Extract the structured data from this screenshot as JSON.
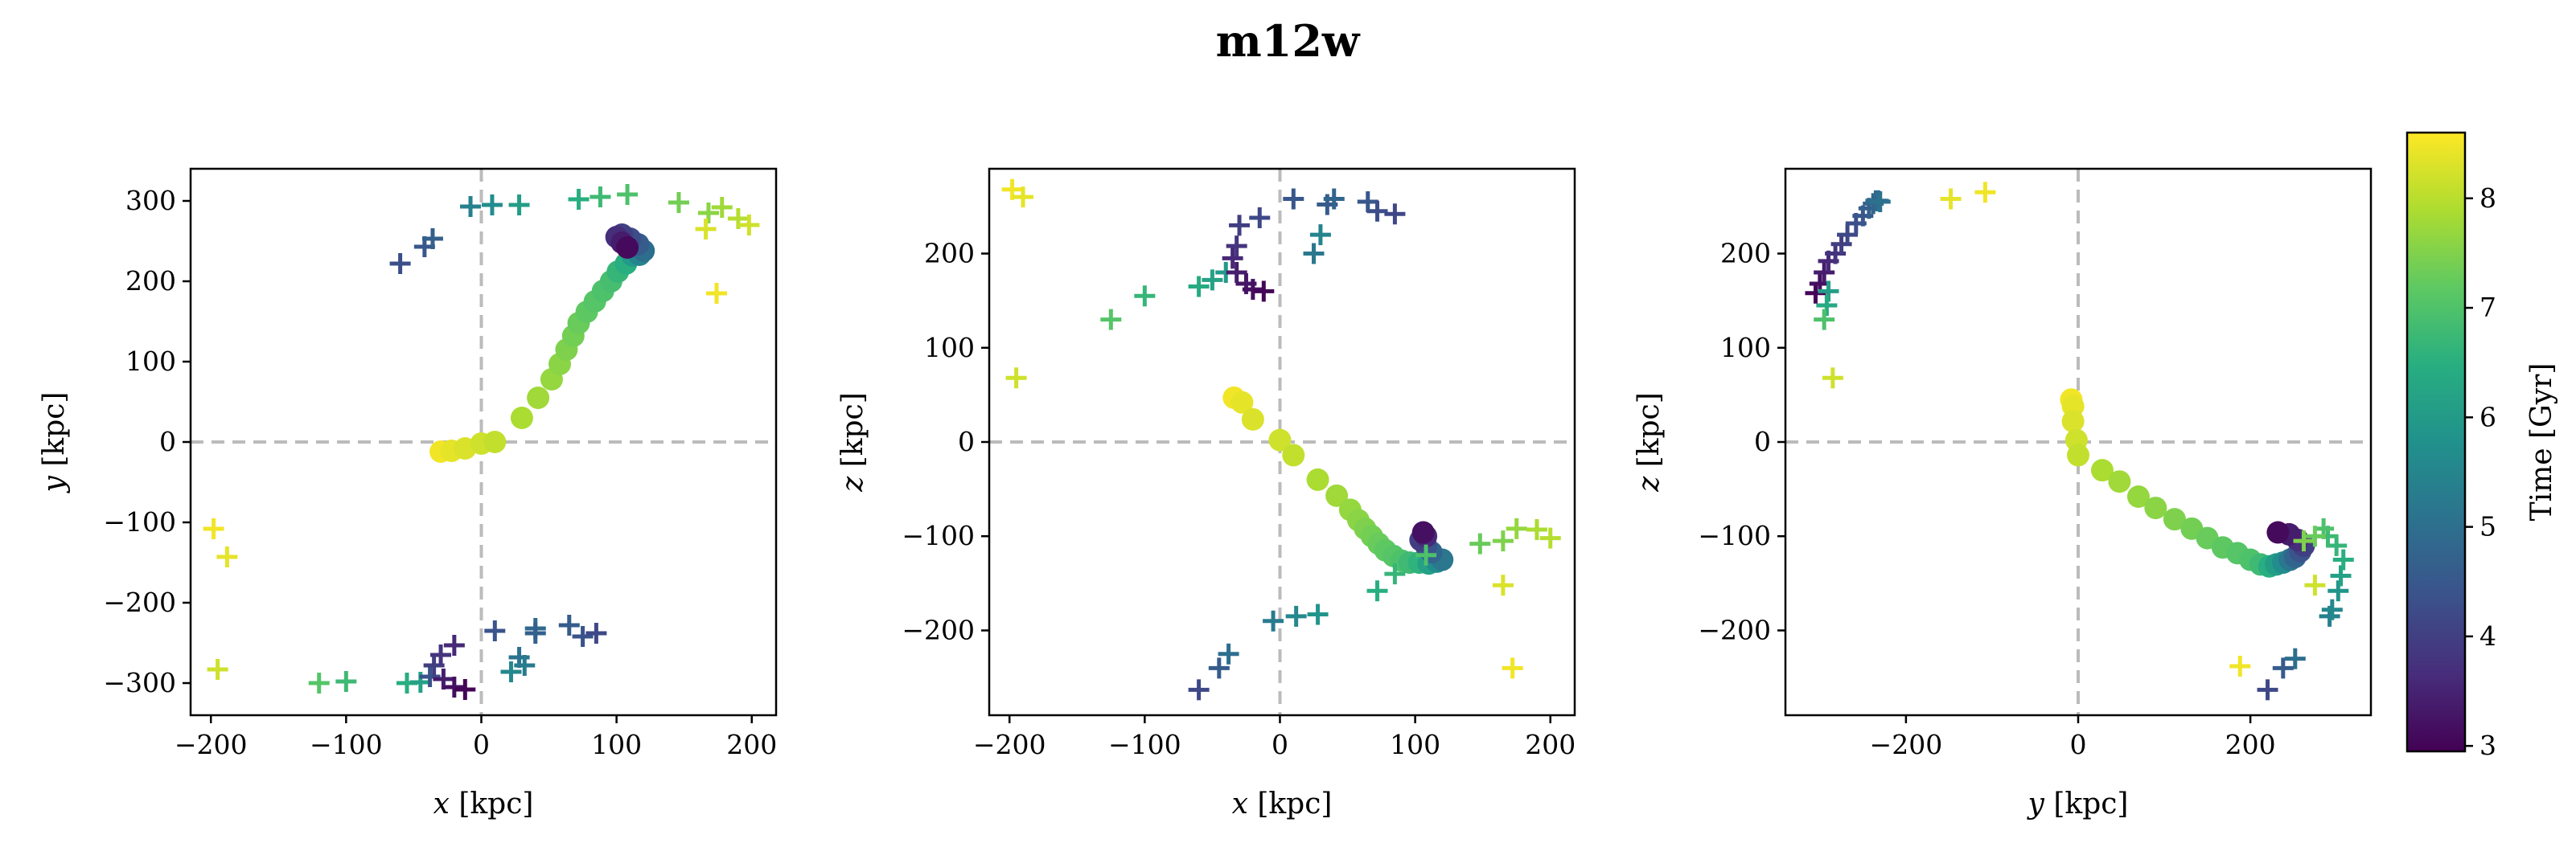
{
  "figure": {
    "title": "m12w",
    "colorbar": {
      "label": "Time [Gyr]",
      "range": [
        2.95,
        8.6
      ],
      "ticks": [
        3,
        4,
        5,
        6,
        7,
        8
      ]
    }
  },
  "chart_data": [
    {
      "type": "scatter",
      "xlabel_var": "x",
      "xlabel_unit": " [kpc]",
      "ylabel_var": "y",
      "ylabel_unit": " [kpc]",
      "xlim": [
        -215,
        218
      ],
      "ylim": [
        -340,
        340
      ],
      "xticks": [
        -200,
        -100,
        0,
        100,
        200
      ],
      "yticks": [
        -300,
        -200,
        -100,
        0,
        100,
        200,
        300
      ],
      "grid": false,
      "zero_lines": true,
      "series": [
        {
          "marker": "circle",
          "points": [
            [
              -30,
              -12,
              8.5
            ],
            [
              -22,
              -11,
              8.4
            ],
            [
              -12,
              -8,
              8.3
            ],
            [
              0,
              -2,
              8.2
            ],
            [
              10,
              0,
              8.1
            ],
            [
              30,
              30,
              7.9
            ],
            [
              42,
              55,
              7.8
            ],
            [
              52,
              78,
              7.7
            ],
            [
              58,
              97,
              7.6
            ],
            [
              63,
              115,
              7.5
            ],
            [
              68,
              132,
              7.4
            ],
            [
              72,
              148,
              7.3
            ],
            [
              78,
              162,
              7.2
            ],
            [
              84,
              175,
              7.1
            ],
            [
              90,
              188,
              7.0
            ],
            [
              96,
              200,
              6.9
            ],
            [
              101,
              212,
              6.7
            ],
            [
              107,
              222,
              6.5
            ],
            [
              112,
              232,
              6.0
            ],
            [
              117,
              233,
              5.5
            ],
            [
              120,
              238,
              5.0
            ],
            [
              116,
              246,
              4.6
            ],
            [
              110,
              253,
              4.3
            ],
            [
              104,
              258,
              4.0
            ],
            [
              100,
              255,
              3.7
            ],
            [
              104,
              248,
              3.4
            ],
            [
              108,
              242,
              3.1
            ]
          ]
        },
        {
          "marker": "plus",
          "points": [
            [
              -60,
              222,
              4.3
            ],
            [
              -42,
              243,
              4.5
            ],
            [
              -36,
              253,
              4.7
            ],
            [
              -8,
              293,
              5.4
            ],
            [
              8,
              295,
              5.7
            ],
            [
              28,
              295,
              6.1
            ],
            [
              72,
              302,
              6.5
            ],
            [
              88,
              305,
              6.8
            ],
            [
              108,
              308,
              7.0
            ],
            [
              146,
              298,
              7.4
            ],
            [
              168,
              285,
              7.6
            ],
            [
              178,
              292,
              7.8
            ],
            [
              190,
              278,
              8.0
            ],
            [
              198,
              270,
              8.2
            ],
            [
              166,
              265,
              8.3
            ],
            [
              174,
              185,
              8.5
            ],
            [
              -198,
              -108,
              8.5
            ],
            [
              -188,
              -143,
              8.4
            ],
            [
              -195,
              -283,
              8.2
            ],
            [
              -120,
              -300,
              7.1
            ],
            [
              -100,
              -298,
              6.8
            ],
            [
              -55,
              -300,
              6.5
            ],
            [
              -45,
              -299,
              6.2
            ],
            [
              -38,
              -292,
              4.4
            ],
            [
              -35,
              -278,
              4.0
            ],
            [
              -30,
              -265,
              3.8
            ],
            [
              -20,
              -253,
              3.6
            ],
            [
              -28,
              -295,
              3.4
            ],
            [
              -20,
              -305,
              3.2
            ],
            [
              -12,
              -308,
              3.0
            ],
            [
              10,
              -235,
              4.4
            ],
            [
              28,
              -268,
              5.1
            ],
            [
              32,
              -278,
              5.3
            ],
            [
              22,
              -286,
              5.6
            ],
            [
              40,
              -232,
              4.9
            ],
            [
              40,
              -238,
              4.7
            ],
            [
              65,
              -228,
              4.6
            ],
            [
              75,
              -242,
              4.4
            ],
            [
              85,
              -238,
              4.2
            ]
          ]
        }
      ]
    },
    {
      "type": "scatter",
      "xlabel_var": "x",
      "xlabel_unit": " [kpc]",
      "ylabel_var": "z",
      "ylabel_unit": " [kpc]",
      "xlim": [
        -215,
        218
      ],
      "ylim": [
        -290,
        290
      ],
      "xticks": [
        -200,
        -100,
        0,
        100,
        200
      ],
      "yticks": [
        -200,
        -100,
        0,
        100,
        200
      ],
      "grid": false,
      "zero_lines": true,
      "series": [
        {
          "marker": "circle",
          "points": [
            [
              -34,
              47,
              8.5
            ],
            [
              -28,
              42,
              8.4
            ],
            [
              -20,
              24,
              8.3
            ],
            [
              0,
              2,
              8.2
            ],
            [
              10,
              -14,
              8.1
            ],
            [
              28,
              -40,
              7.9
            ],
            [
              42,
              -57,
              7.8
            ],
            [
              52,
              -72,
              7.7
            ],
            [
              58,
              -83,
              7.6
            ],
            [
              63,
              -92,
              7.5
            ],
            [
              68,
              -100,
              7.4
            ],
            [
              73,
              -108,
              7.3
            ],
            [
              78,
              -115,
              7.2
            ],
            [
              84,
              -121,
              7.1
            ],
            [
              90,
              -126,
              7.0
            ],
            [
              96,
              -128,
              6.8
            ],
            [
              103,
              -128,
              6.6
            ],
            [
              110,
              -129,
              6.2
            ],
            [
              116,
              -127,
              5.7
            ],
            [
              120,
              -125,
              5.2
            ],
            [
              112,
              -117,
              4.8
            ],
            [
              108,
              -110,
              4.4
            ],
            [
              104,
              -104,
              4.0
            ],
            [
              108,
              -100,
              3.6
            ],
            [
              106,
              -96,
              3.2
            ]
          ]
        },
        {
          "marker": "plus",
          "points": [
            [
              -198,
              268,
              8.5
            ],
            [
              -190,
              260,
              8.4
            ],
            [
              -195,
              68,
              8.2
            ],
            [
              -125,
              130,
              7.1
            ],
            [
              -100,
              155,
              6.7
            ],
            [
              -60,
              165,
              6.4
            ],
            [
              -50,
              172,
              6.2
            ],
            [
              -40,
              180,
              6.0
            ],
            [
              -30,
              230,
              4.0
            ],
            [
              -32,
              208,
              3.8
            ],
            [
              -35,
              195,
              3.6
            ],
            [
              -32,
              180,
              3.4
            ],
            [
              -25,
              168,
              3.3
            ],
            [
              -20,
              162,
              3.2
            ],
            [
              -12,
              160,
              3.0
            ],
            [
              -15,
              238,
              4.2
            ],
            [
              10,
              258,
              4.5
            ],
            [
              25,
              200,
              5.2
            ],
            [
              30,
              220,
              5.5
            ],
            [
              35,
              252,
              4.6
            ],
            [
              40,
              258,
              4.8
            ],
            [
              65,
              255,
              4.5
            ],
            [
              72,
              245,
              4.3
            ],
            [
              85,
              242,
              4.2
            ],
            [
              -60,
              -263,
              4.2
            ],
            [
              -45,
              -240,
              4.6
            ],
            [
              -38,
              -225,
              5.0
            ],
            [
              -5,
              -190,
              5.3
            ],
            [
              12,
              -185,
              5.6
            ],
            [
              28,
              -183,
              5.9
            ],
            [
              72,
              -158,
              6.5
            ],
            [
              85,
              -140,
              6.7
            ],
            [
              108,
              -120,
              7.0
            ],
            [
              148,
              -108,
              7.3
            ],
            [
              165,
              -105,
              7.5
            ],
            [
              175,
              -92,
              7.7
            ],
            [
              190,
              -93,
              7.9
            ],
            [
              200,
              -102,
              8.0
            ],
            [
              165,
              -152,
              8.3
            ],
            [
              172,
              -240,
              8.5
            ]
          ]
        }
      ]
    },
    {
      "type": "scatter",
      "xlabel_var": "y",
      "xlabel_unit": " [kpc]",
      "ylabel_var": "z",
      "ylabel_unit": " [kpc]",
      "xlim": [
        -340,
        340
      ],
      "ylim": [
        -290,
        290
      ],
      "xticks": [
        -200,
        0,
        200
      ],
      "yticks": [
        -200,
        -100,
        0,
        100,
        200
      ],
      "grid": false,
      "zero_lines": true,
      "series": [
        {
          "marker": "circle",
          "points": [
            [
              -8,
              45,
              8.5
            ],
            [
              -6,
              38,
              8.4
            ],
            [
              -6,
              22,
              8.3
            ],
            [
              -2,
              2,
              8.2
            ],
            [
              0,
              -14,
              8.1
            ],
            [
              28,
              -30,
              7.9
            ],
            [
              48,
              -42,
              7.8
            ],
            [
              70,
              -58,
              7.7
            ],
            [
              90,
              -70,
              7.6
            ],
            [
              112,
              -82,
              7.5
            ],
            [
              132,
              -92,
              7.4
            ],
            [
              150,
              -102,
              7.3
            ],
            [
              168,
              -112,
              7.2
            ],
            [
              185,
              -118,
              7.1
            ],
            [
              200,
              -125,
              7.0
            ],
            [
              212,
              -130,
              6.8
            ],
            [
              222,
              -132,
              6.5
            ],
            [
              230,
              -130,
              6.1
            ],
            [
              238,
              -128,
              5.7
            ],
            [
              246,
              -125,
              5.2
            ],
            [
              252,
              -122,
              4.8
            ],
            [
              258,
              -116,
              4.4
            ],
            [
              262,
              -110,
              4.0
            ],
            [
              255,
              -104,
              3.7
            ],
            [
              245,
              -98,
              3.4
            ],
            [
              232,
              -96,
              3.1
            ]
          ]
        },
        {
          "marker": "plus",
          "points": [
            [
              -305,
              158,
              3.0
            ],
            [
              -300,
              168,
              3.2
            ],
            [
              -295,
              180,
              3.4
            ],
            [
              -290,
              192,
              3.6
            ],
            [
              -282,
              200,
              3.8
            ],
            [
              -275,
              210,
              4.0
            ],
            [
              -268,
              220,
              4.2
            ],
            [
              -258,
              232,
              4.3
            ],
            [
              -250,
              240,
              4.5
            ],
            [
              -243,
              248,
              4.7
            ],
            [
              -238,
              253,
              4.8
            ],
            [
              -235,
              256,
              4.9
            ],
            [
              -232,
              256,
              5.0
            ],
            [
              -230,
              255,
              5.1
            ],
            [
              -290,
              160,
              6.1
            ],
            [
              -292,
              145,
              6.4
            ],
            [
              -295,
              130,
              7.0
            ],
            [
              -285,
              68,
              8.2
            ],
            [
              -148,
              258,
              8.4
            ],
            [
              -108,
              265,
              8.5
            ],
            [
              220,
              -263,
              4.2
            ],
            [
              238,
              -240,
              4.6
            ],
            [
              252,
              -230,
              5.0
            ],
            [
              292,
              -185,
              5.4
            ],
            [
              295,
              -178,
              5.6
            ],
            [
              302,
              -158,
              5.9
            ],
            [
              305,
              -142,
              6.2
            ],
            [
              308,
              -125,
              6.5
            ],
            [
              300,
              -110,
              6.7
            ],
            [
              290,
              -100,
              6.8
            ],
            [
              285,
              -92,
              7.0
            ],
            [
              275,
              -100,
              7.3
            ],
            [
              262,
              -105,
              7.5
            ],
            [
              275,
              -152,
              8.2
            ],
            [
              188,
              -238,
              8.5
            ]
          ]
        }
      ]
    }
  ]
}
